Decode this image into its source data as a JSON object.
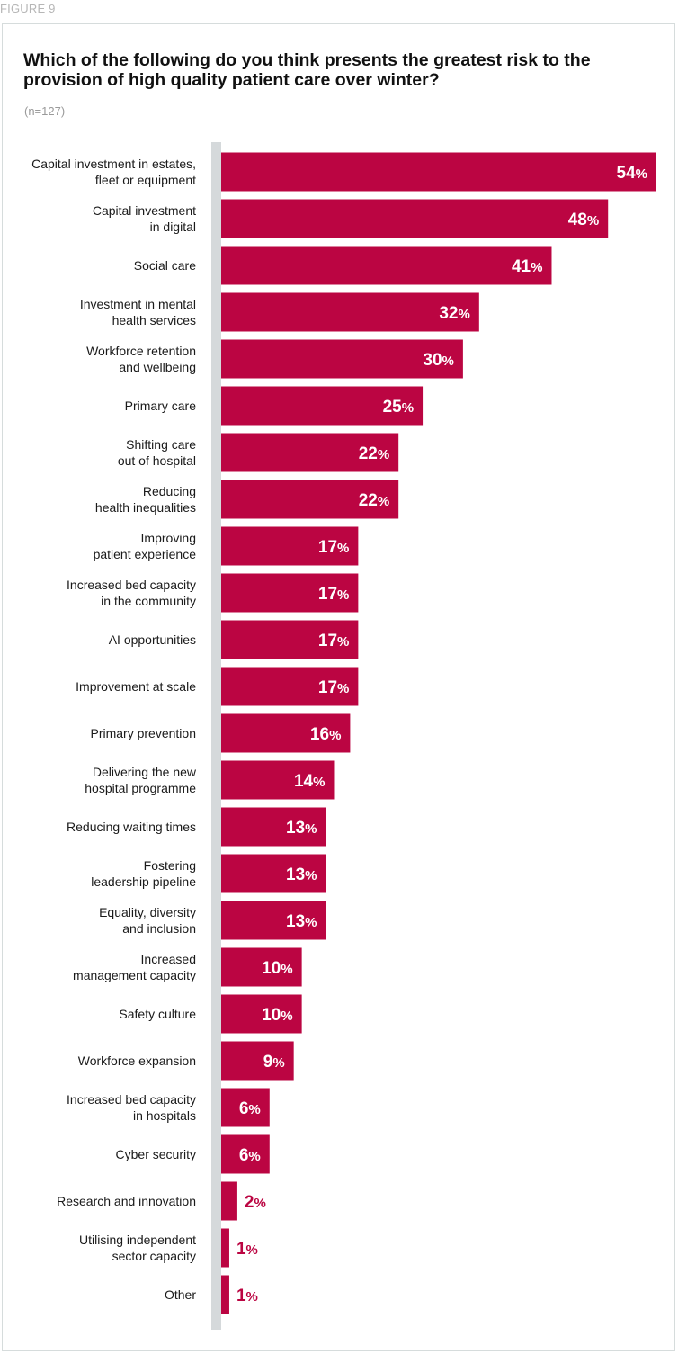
{
  "figure_label": "FIGURE 9",
  "chart_data": {
    "type": "bar",
    "orientation": "horizontal",
    "title": "Which of the following do you think presents the greatest risk to the provision of high quality patient care over winter?",
    "subtitle": "(n=127)",
    "value_suffix": "%",
    "xlim": [
      0,
      54
    ],
    "grid": false,
    "categories": [
      [
        "Capital investment in estates,",
        "fleet or equipment"
      ],
      [
        "Capital investment",
        "in digital"
      ],
      [
        "Social care"
      ],
      [
        "Investment in mental",
        "health services"
      ],
      [
        "Workforce retention",
        "and wellbeing"
      ],
      [
        "Primary care"
      ],
      [
        "Shifting care",
        "out of hospital"
      ],
      [
        "Reducing",
        "health inequalities"
      ],
      [
        "Improving",
        "patient experience"
      ],
      [
        "Increased bed capacity",
        "in the community"
      ],
      [
        "AI opportunities"
      ],
      [
        "Improvement at scale"
      ],
      [
        "Primary prevention"
      ],
      [
        "Delivering the new",
        "hospital programme"
      ],
      [
        "Reducing waiting times"
      ],
      [
        "Fostering",
        "leadership pipeline"
      ],
      [
        "Equality, diversity",
        "and inclusion"
      ],
      [
        "Increased",
        "management capacity"
      ],
      [
        "Safety culture"
      ],
      [
        "Workforce expansion"
      ],
      [
        "Increased bed capacity",
        "in hospitals"
      ],
      [
        "Cyber security"
      ],
      [
        "Research and innovation"
      ],
      [
        "Utilising independent",
        "sector capacity"
      ],
      [
        "Other"
      ]
    ],
    "values": [
      54,
      48,
      41,
      32,
      30,
      25,
      22,
      22,
      17,
      17,
      17,
      17,
      16,
      14,
      13,
      13,
      13,
      10,
      10,
      9,
      6,
      6,
      2,
      1,
      1
    ]
  },
  "colors": {
    "bar": "#bb0542",
    "value_text_inside": "#ffffff",
    "value_text_outside": "#bb0542",
    "axis_line": "#d5d9db"
  }
}
